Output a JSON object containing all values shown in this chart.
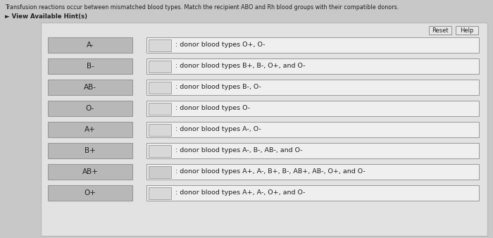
{
  "title": "Transfusion reactions occur between mismatched blood types. Match the recipient ABO and Rh blood groups with their compatible donors.",
  "hint_text": "► View Available Hint(s)",
  "outer_bg": "#c8c8c8",
  "panel_bg": "#e2e2e2",
  "left_labels": [
    "A-",
    "B-",
    "AB-",
    "O-",
    "A+",
    "B+",
    "AB+",
    "O+"
  ],
  "right_labels": [
    ": donor blood types O+, O-",
    ": donor blood types B+, B-, O+, and O-",
    ": donor blood types B-, O-",
    ": donor blood types O-",
    ": donor blood types A-, O-",
    ": donor blood types A-, B-, AB-, and O-",
    ": donor blood types A+, A-, B+, B-, AB+, AB-, O+, and O-",
    ": donor blood types A+, A-, O+, and O-"
  ],
  "button_reset": "Reset",
  "button_help": "Help",
  "left_box_color": "#b8b8b8",
  "right_box_color": "#efefef",
  "small_box_color": "#d8d8d8",
  "small_box_color_7": "#cccccc",
  "box_outline": "#999999",
  "panel_outline": "#bbbbbb",
  "text_color": "#222222",
  "hint_color": "#333333"
}
